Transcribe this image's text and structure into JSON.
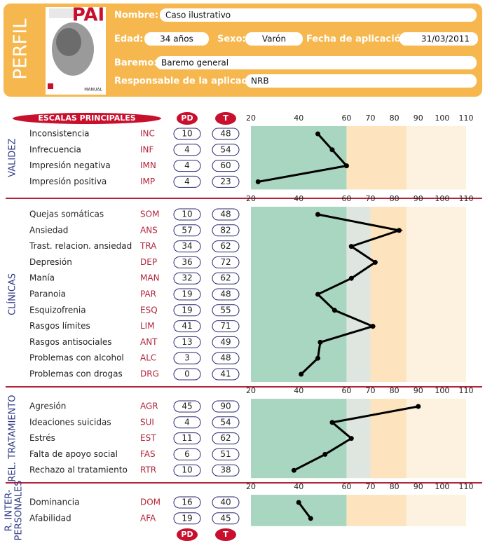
{
  "header": {
    "side_label": "PERFIL",
    "cover": {
      "title": "PAI",
      "subtitle": "MANUAL"
    },
    "fields": [
      {
        "label": "Nombre:",
        "value": "Caso ilustrativo"
      },
      {
        "label": "Edad:",
        "value": "34 años"
      },
      {
        "label": "Sexo:",
        "value": "Varón"
      },
      {
        "label": "Fecha de aplicación:",
        "value": "31/03/2011"
      },
      {
        "label": "Baremo:",
        "value": "Baremo general"
      },
      {
        "label": "Responsable de la aplicación:",
        "value": "NRB"
      }
    ]
  },
  "table": {
    "header": {
      "scales": "ESCALAS PRINCIPALES",
      "pd": "PD",
      "t": "T"
    },
    "footer": {
      "pd": "PD",
      "t": "T"
    }
  },
  "chart_data": [
    {
      "type": "line",
      "title": "VALIDEZ",
      "color": "#000000",
      "xlim": [
        20,
        110
      ],
      "xticks": [
        20,
        40,
        60,
        70,
        80,
        90,
        100,
        110
      ],
      "categories": [
        "Inconsistencia",
        "Infrecuencia",
        "Impresión negativa",
        "Impresión positiva"
      ],
      "codes": [
        "INC",
        "INF",
        "IMN",
        "IMP"
      ],
      "pd": [
        10,
        4,
        4,
        4
      ],
      "values": [
        48,
        54,
        60,
        23
      ]
    },
    {
      "type": "line",
      "title": "CLÍNICAS",
      "color": "#000000",
      "xlim": [
        20,
        110
      ],
      "xticks": [
        20,
        40,
        60,
        70,
        80,
        90,
        100,
        110
      ],
      "categories": [
        "Quejas somáticas",
        "Ansiedad",
        "Trast. relacion. ansiedad",
        "Depresión",
        "Manía",
        "Paranoia",
        "Esquizofrenia",
        "Rasgos límites",
        "Rasgos antisociales",
        "Problemas con alcohol",
        "Problemas con drogas"
      ],
      "codes": [
        "SOM",
        "ANS",
        "TRA",
        "DEP",
        "MAN",
        "PAR",
        "ESQ",
        "LIM",
        "ANT",
        "ALC",
        "DRG"
      ],
      "pd": [
        10,
        57,
        34,
        36,
        32,
        19,
        19,
        41,
        13,
        3,
        0
      ],
      "values": [
        48,
        82,
        62,
        72,
        62,
        48,
        55,
        71,
        49,
        48,
        41
      ]
    },
    {
      "type": "line",
      "title": "REL. TRATAMIENTO",
      "color": "#000000",
      "xlim": [
        20,
        110
      ],
      "xticks": [
        20,
        40,
        60,
        70,
        80,
        90,
        100,
        110
      ],
      "categories": [
        "Agresión",
        "Ideaciones suicidas",
        "Estrés",
        "Falta de apoyo social",
        "Rechazo al tratamiento"
      ],
      "codes": [
        "AGR",
        "SUI",
        "EST",
        "FAS",
        "RTR"
      ],
      "pd": [
        45,
        4,
        11,
        6,
        10
      ],
      "values": [
        90,
        54,
        62,
        51,
        38
      ]
    },
    {
      "type": "line",
      "title": [
        "R. INTER-",
        "PERSONALES"
      ],
      "color": "#000000",
      "xlim": [
        20,
        110
      ],
      "xticks": [
        20,
        40,
        60,
        70,
        80,
        90,
        100,
        110
      ],
      "categories": [
        "Dominancia",
        "Afabilidad"
      ],
      "codes": [
        "DOM",
        "AFA"
      ],
      "pd": [
        16,
        19
      ],
      "values": [
        40,
        45
      ]
    }
  ]
}
